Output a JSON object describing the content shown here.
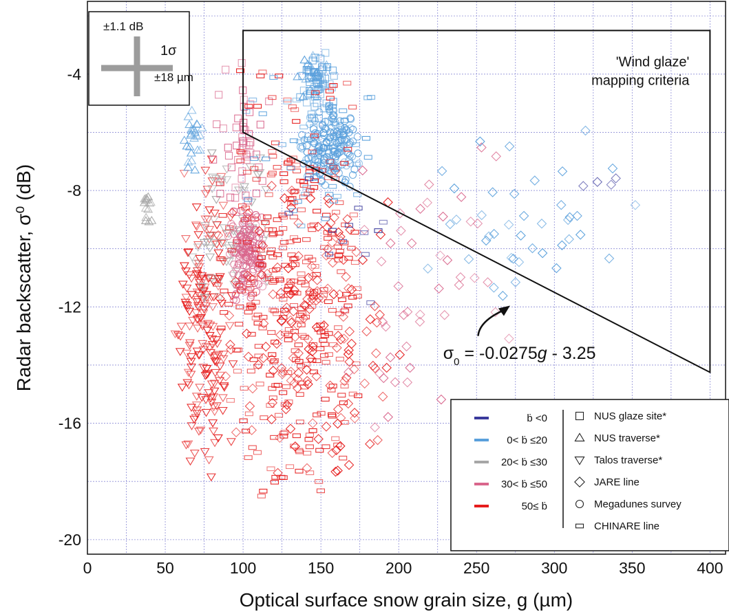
{
  "chart_data": {
    "type": "scatter",
    "title": "",
    "xlabel": "Optical surface snow grain size, g (µm)",
    "ylabel": "Radar backscatter, σ⁰ (dB)",
    "xlim": [
      0,
      410
    ],
    "ylim": [
      -20.5,
      -1.5
    ],
    "xticks": [
      "0",
      "50",
      "100",
      "150",
      "200",
      "250",
      "300",
      "350",
      "400"
    ],
    "yticks": [
      "-4",
      "-8",
      "-12",
      "-16",
      "-20"
    ],
    "grid": true,
    "error_bar_box": {
      "y_label": "±1.1 dB",
      "sigma_label": "1σ",
      "x_label": "±18 µm"
    },
    "criteria_label": [
      "'Wind glaze'",
      "mapping criteria"
    ],
    "criteria_polygon": [
      [
        100,
        -2.5
      ],
      [
        400,
        -2.5
      ],
      [
        400,
        -14.25
      ],
      [
        100,
        -6.0
      ]
    ],
    "equation_label": {
      "prefix": "σ",
      "sub": "0",
      "mid": " = -0.0275",
      "var": "g",
      "suffix": " - 3.25"
    },
    "accumulation_legend": [
      {
        "label": "ḃ <0",
        "color": "#3a3a9c"
      },
      {
        "label": "0< ḃ ≤20",
        "color": "#5aa0dc"
      },
      {
        "label": "20< ḃ ≤30",
        "color": "#a6a6a6"
      },
      {
        "label": "30< ḃ ≤50",
        "color": "#d9668c"
      },
      {
        "label": "50≤ ḃ",
        "color": "#e61c1c"
      }
    ],
    "source_legend": [
      {
        "label": "NUS glaze site*",
        "marker": "square"
      },
      {
        "label": "NUS traverse*",
        "marker": "triangle-up"
      },
      {
        "label": "Talos traverse*",
        "marker": "triangle-down"
      },
      {
        "label": "JARE line",
        "marker": "diamond"
      },
      {
        "label": "Megadunes survey",
        "marker": "circle"
      },
      {
        "label": "CHINARE line",
        "marker": "rect"
      }
    ],
    "series": [
      {
        "marker": "triangle-down",
        "class": "50≤ ḃ",
        "color": "#e61c1c",
        "x_range": [
          55,
          95
        ],
        "y_range": [
          -18.5,
          -6.5
        ],
        "n": 190
      },
      {
        "marker": "triangle-down",
        "class": "20< ḃ ≤30",
        "color": "#a6a6a6",
        "x_range": [
          60,
          120
        ],
        "y_range": [
          -12.5,
          -6.5
        ],
        "n": 60
      },
      {
        "marker": "triangle-up",
        "class": "20< ḃ ≤30",
        "color": "#a6a6a6",
        "x_range": [
          35,
          42
        ],
        "y_range": [
          -9.3,
          -7.7
        ],
        "n": 14
      },
      {
        "marker": "triangle-up",
        "class": "0< ḃ ≤20",
        "color": "#5aa0dc",
        "x_range": [
          62,
          75
        ],
        "y_range": [
          -7.5,
          -5.0
        ],
        "n": 25
      },
      {
        "marker": "triangle-up",
        "class": "0< ḃ ≤20",
        "color": "#5aa0dc",
        "x_range": [
          130,
          155
        ],
        "y_range": [
          -5.0,
          -3.0
        ],
        "n": 15
      },
      {
        "marker": "square",
        "class": "0< ḃ ≤20",
        "color": "#5aa0dc",
        "x_range": [
          135,
          160
        ],
        "y_range": [
          -6.0,
          -3.0
        ],
        "n": 60
      },
      {
        "marker": "square",
        "class": "30< ḃ ≤50",
        "color": "#d9668c",
        "x_range": [
          80,
          120
        ],
        "y_range": [
          -9.0,
          -3.5
        ],
        "n": 50
      },
      {
        "marker": "circle",
        "class": "0< ḃ ≤20",
        "color": "#5aa0dc",
        "x_range": [
          135,
          178
        ],
        "y_range": [
          -8.0,
          -5.0
        ],
        "n": 180
      },
      {
        "marker": "circle",
        "class": "30< ḃ ≤50",
        "color": "#d9668c",
        "x_range": [
          90,
          115
        ],
        "y_range": [
          -12.0,
          -8.5
        ],
        "n": 150
      },
      {
        "marker": "diamond",
        "class": "50≤ ḃ",
        "color": "#e61c1c",
        "x_range": [
          75,
          215
        ],
        "y_range": [
          -18.5,
          -7.0
        ],
        "n": 170
      },
      {
        "marker": "diamond",
        "class": "30< ḃ ≤50",
        "color": "#d9668c",
        "x_range": [
          150,
          285
        ],
        "y_range": [
          -16.8,
          -5.8
        ],
        "n": 45
      },
      {
        "marker": "diamond",
        "class": "0< ḃ ≤20",
        "color": "#5aa0dc",
        "x_range": [
          190,
          365
        ],
        "y_range": [
          -12.5,
          -5.8
        ],
        "n": 40
      },
      {
        "marker": "diamond",
        "class": "ḃ <0",
        "color": "#3a3a9c",
        "x_range": [
          290,
          375
        ],
        "y_range": [
          -8.4,
          -6.8
        ],
        "n": 4
      },
      {
        "marker": "rect",
        "class": "50≤ ḃ",
        "color": "#e61c1c",
        "x_range": [
          80,
          185
        ],
        "y_range": [
          -19.2,
          -3.5
        ],
        "n": 330
      },
      {
        "marker": "rect",
        "class": "0< ḃ ≤20",
        "color": "#5aa0dc",
        "x_range": [
          100,
          200
        ],
        "y_range": [
          -10.5,
          -3.5
        ],
        "n": 40
      },
      {
        "marker": "rect",
        "class": "ḃ <0",
        "color": "#3a3a9c",
        "x_range": [
          115,
          195
        ],
        "y_range": [
          -13.0,
          -5.5
        ],
        "n": 12
      }
    ]
  }
}
